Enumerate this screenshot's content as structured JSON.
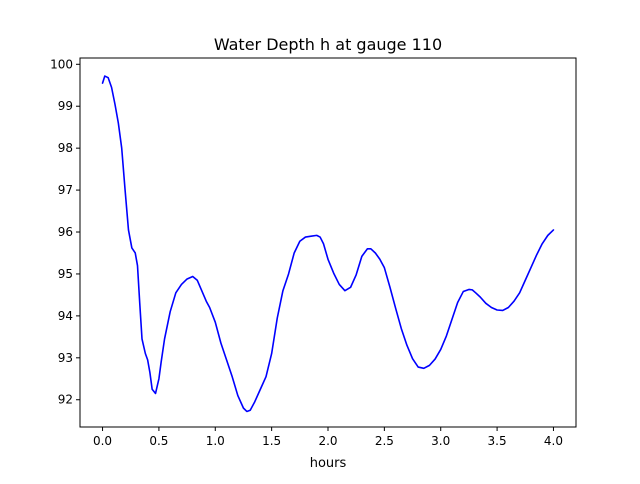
{
  "chart_data": {
    "type": "line",
    "title": "Water Depth h at gauge 110",
    "xlabel": "hours",
    "ylabel": "",
    "xlim": [
      -0.2,
      4.2
    ],
    "ylim": [
      91.35,
      100.15
    ],
    "x_ticks": [
      0.0,
      0.5,
      1.0,
      1.5,
      2.0,
      2.5,
      3.0,
      3.5,
      4.0
    ],
    "x_tick_labels": [
      "0.0",
      "0.5",
      "1.0",
      "1.5",
      "2.0",
      "2.5",
      "3.0",
      "3.5",
      "4.0"
    ],
    "y_ticks": [
      92,
      93,
      94,
      95,
      96,
      97,
      98,
      99,
      100
    ],
    "y_tick_labels": [
      "92",
      "93",
      "94",
      "95",
      "96",
      "97",
      "98",
      "99",
      "100"
    ],
    "grid": false,
    "series": [
      {
        "color": "#0000ff",
        "x": [
          0.0,
          0.02,
          0.05,
          0.08,
          0.11,
          0.14,
          0.17,
          0.2,
          0.23,
          0.26,
          0.29,
          0.31,
          0.33,
          0.35,
          0.38,
          0.4,
          0.42,
          0.44,
          0.47,
          0.5,
          0.52,
          0.55,
          0.6,
          0.65,
          0.7,
          0.75,
          0.8,
          0.84,
          0.88,
          0.92,
          0.95,
          1.0,
          1.05,
          1.1,
          1.15,
          1.2,
          1.25,
          1.28,
          1.31,
          1.35,
          1.4,
          1.45,
          1.5,
          1.55,
          1.6,
          1.65,
          1.7,
          1.75,
          1.8,
          1.85,
          1.9,
          1.93,
          1.96,
          2.0,
          2.05,
          2.1,
          2.15,
          2.2,
          2.25,
          2.3,
          2.35,
          2.38,
          2.42,
          2.46,
          2.5,
          2.55,
          2.6,
          2.65,
          2.7,
          2.75,
          2.8,
          2.85,
          2.9,
          2.95,
          3.0,
          3.05,
          3.1,
          3.15,
          3.2,
          3.25,
          3.28,
          3.31,
          3.35,
          3.4,
          3.45,
          3.5,
          3.55,
          3.6,
          3.65,
          3.7,
          3.75,
          3.8,
          3.85,
          3.9,
          3.95,
          4.0
        ],
        "y": [
          99.55,
          99.72,
          99.68,
          99.45,
          99.05,
          98.6,
          98.0,
          97.0,
          96.05,
          95.62,
          95.5,
          95.2,
          94.3,
          93.45,
          93.1,
          92.95,
          92.65,
          92.25,
          92.15,
          92.5,
          92.9,
          93.45,
          94.1,
          94.55,
          94.75,
          94.88,
          94.94,
          94.85,
          94.6,
          94.35,
          94.2,
          93.85,
          93.35,
          92.95,
          92.55,
          92.1,
          91.8,
          91.72,
          91.75,
          91.95,
          92.25,
          92.55,
          93.1,
          93.95,
          94.6,
          95.0,
          95.5,
          95.78,
          95.88,
          95.9,
          95.92,
          95.88,
          95.72,
          95.35,
          95.02,
          94.75,
          94.6,
          94.68,
          94.98,
          95.42,
          95.6,
          95.6,
          95.5,
          95.35,
          95.15,
          94.68,
          94.18,
          93.7,
          93.3,
          92.98,
          92.78,
          92.75,
          92.82,
          92.97,
          93.2,
          93.52,
          93.92,
          94.32,
          94.58,
          94.63,
          94.62,
          94.55,
          94.45,
          94.3,
          94.2,
          94.14,
          94.13,
          94.2,
          94.35,
          94.55,
          94.85,
          95.15,
          95.45,
          95.72,
          95.92,
          96.05
        ]
      }
    ]
  }
}
